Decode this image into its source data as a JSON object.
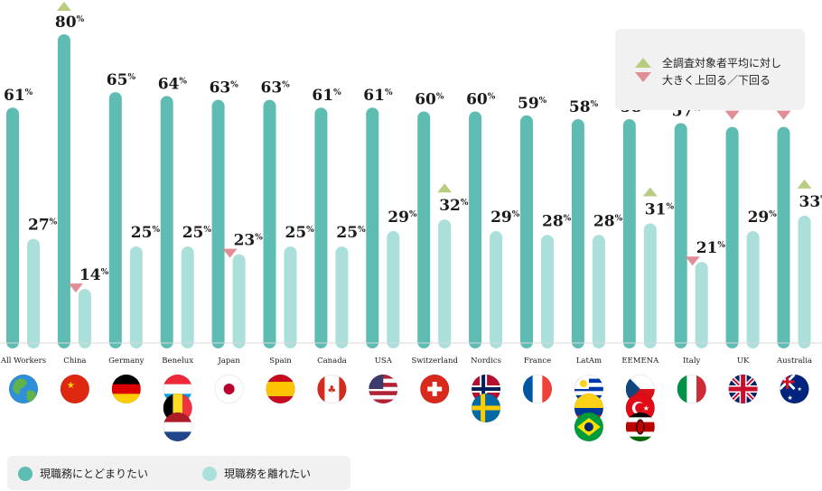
{
  "chart_data": {
    "type": "bar",
    "categories": [
      "All Workers",
      "China",
      "Germany",
      "Benelux",
      "Japan",
      "Spain",
      "Canada",
      "USA",
      "Switzerland",
      "Nordics",
      "France",
      "LatAm",
      "EEMENA",
      "Italy",
      "UK",
      "Australia"
    ],
    "series": [
      {
        "name": "現職務にとどまりたい",
        "color": "#5fbcb2",
        "values": [
          61,
          80,
          65,
          64,
          63,
          63,
          61,
          61,
          60,
          60,
          59,
          58,
          58,
          57,
          56,
          56
        ]
      },
      {
        "name": "現職務を離れたい",
        "color": "#abdfda",
        "values": [
          27,
          14,
          25,
          25,
          23,
          25,
          25,
          29,
          32,
          29,
          28,
          28,
          31,
          21,
          29,
          33
        ]
      }
    ],
    "value_suffix": "%",
    "markers": {
      "up": [
        {
          "category": "China",
          "series": 0
        },
        {
          "category": "Switzerland",
          "series": 1
        },
        {
          "category": "EEMENA",
          "series": 1
        },
        {
          "category": "Australia",
          "series": 1
        }
      ],
      "down": [
        {
          "category": "China",
          "series": 1
        },
        {
          "category": "Japan",
          "series": 1
        },
        {
          "category": "Italy",
          "series": 1
        },
        {
          "category": "UK",
          "series": 0
        },
        {
          "category": "Australia",
          "series": 0
        }
      ],
      "up_color": "#b9cd82",
      "down_color": "#e08d94"
    },
    "ylim": [
      0,
      85
    ]
  },
  "marker_legend": {
    "line1": "全調査対象者平均に対し",
    "line2": "大きく上回る／下回る"
  },
  "series_legend": {
    "stay_label": "現職務にとどまりたい",
    "leave_label": "現職務を離れたい"
  },
  "flag_icons": [
    [
      "globe-icon"
    ],
    [
      "flag-china-icon"
    ],
    [
      "flag-germany-icon"
    ],
    [
      "flag-luxembourg-icon",
      "flag-belgium-icon",
      "flag-netherlands-icon"
    ],
    [
      "flag-japan-icon"
    ],
    [
      "flag-spain-icon"
    ],
    [
      "flag-canada-icon"
    ],
    [
      "flag-usa-icon"
    ],
    [
      "flag-switzerland-icon"
    ],
    [
      "flag-norway-icon",
      "flag-sweden-icon"
    ],
    [
      "flag-france-icon"
    ],
    [
      "flag-uruguay-icon",
      "flag-colombia-icon",
      "flag-brazil-icon"
    ],
    [
      "flag-czech-icon",
      "flag-turkey-icon",
      "flag-kenya-icon"
    ],
    [
      "flag-italy-icon"
    ],
    [
      "flag-uk-icon"
    ],
    [
      "flag-australia-icon"
    ]
  ]
}
